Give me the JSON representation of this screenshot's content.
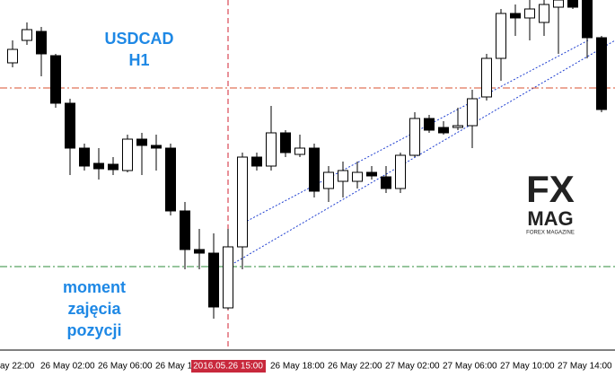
{
  "chart_data": {
    "type": "candlestick",
    "title": "USDCAD",
    "subtitle": "H1",
    "annotation": [
      "moment",
      "zajęcia",
      "pozycji"
    ],
    "logo": {
      "top": "FX",
      "middle": "MAG",
      "bottom": "FOREX MAGAZINE"
    },
    "categories": [
      null,
      null,
      "26 May 02:00",
      null,
      null,
      null,
      "26 May 06:00",
      null,
      null,
      null,
      "26 May 1",
      null,
      null,
      null,
      null,
      "2016.05.26 15:00",
      null,
      null,
      "26 May 18:00",
      null,
      null,
      null,
      "26 May 22:00",
      null,
      null,
      null,
      "27 May 02:00",
      null,
      null,
      null,
      "27 May 06:00",
      null,
      null,
      null,
      "27 May 10:00",
      null,
      null,
      null,
      "27 May 14:00",
      null,
      null,
      null
    ],
    "offscreen_label": "ay 22:00",
    "highlight_index": 15,
    "open": [
      320,
      345,
      355,
      328,
      275,
      225,
      208,
      207,
      200,
      235,
      228,
      225,
      155,
      112,
      108,
      47,
      115,
      215,
      205,
      242,
      218,
      225,
      180,
      188,
      188,
      198,
      193,
      180,
      217,
      258,
      248,
      248,
      250,
      282,
      325,
      375,
      370,
      365,
      382,
      390,
      390,
      348
    ],
    "high": [
      345,
      365,
      360,
      330,
      280,
      230,
      225,
      215,
      240,
      242,
      240,
      230,
      165,
      135,
      130,
      135,
      220,
      220,
      272,
      245,
      240,
      230,
      205,
      210,
      210,
      205,
      205,
      220,
      265,
      262,
      255,
      270,
      290,
      330,
      380,
      385,
      390,
      390,
      390,
      390,
      390,
      350
    ],
    "low": [
      315,
      340,
      305,
      270,
      195,
      200,
      190,
      195,
      198,
      195,
      200,
      150,
      90,
      90,
      35,
      45,
      90,
      200,
      200,
      215,
      215,
      170,
      165,
      170,
      180,
      190,
      175,
      175,
      215,
      242,
      240,
      245,
      225,
      278,
      300,
      350,
      345,
      350,
      330,
      380,
      325,
      265
    ],
    "close": [
      335,
      357,
      330,
      275,
      225,
      205,
      202,
      201,
      235,
      228,
      225,
      155,
      112,
      108,
      48,
      115,
      215,
      205,
      242,
      220,
      225,
      177,
      198,
      200,
      198,
      194,
      180,
      217,
      258,
      245,
      242,
      250,
      280,
      325,
      375,
      370,
      380,
      385,
      390,
      382,
      348,
      268
    ],
    "levels": [
      {
        "value": 292,
        "color": "#d9502f"
      },
      {
        "value": 93,
        "color": "#2e8b3a"
      }
    ],
    "ylim": [
      0,
      390
    ],
    "up_color": "#ffffff",
    "down_color": "#000000",
    "highlight_color": "#c8283c"
  }
}
